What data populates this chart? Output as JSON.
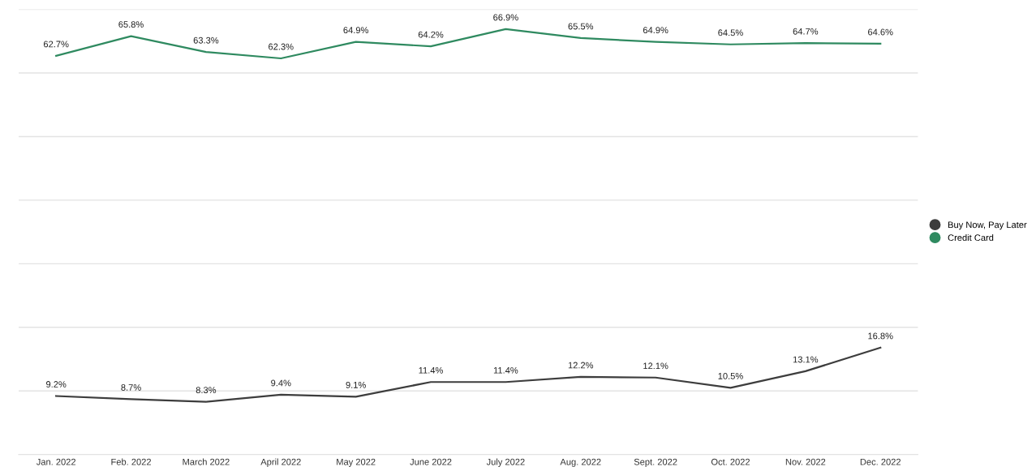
{
  "chart_data": {
    "type": "line",
    "categories": [
      "Jan. 2022",
      "Feb. 2022",
      "March 2022",
      "April 2022",
      "May 2022",
      "June 2022",
      "July 2022",
      "Aug. 2022",
      "Sept. 2022",
      "Oct. 2022",
      "Nov. 2022",
      "Dec. 2022"
    ],
    "series": [
      {
        "name": "Buy Now, Pay Later",
        "color": "#3d3d3d",
        "values": [
          9.2,
          8.7,
          8.3,
          9.4,
          9.1,
          11.4,
          11.4,
          12.2,
          12.1,
          10.5,
          13.1,
          16.8
        ],
        "value_labels": [
          "9.2%",
          "8.7%",
          "8.3%",
          "9.4%",
          "9.1%",
          "11.4%",
          "11.4%",
          "12.2%",
          "12.1%",
          "10.5%",
          "13.1%",
          "16.8%"
        ]
      },
      {
        "name": "Credit Card",
        "color": "#2f8a60",
        "values": [
          62.7,
          65.8,
          63.3,
          62.3,
          64.9,
          64.2,
          66.9,
          65.5,
          64.9,
          64.5,
          64.7,
          64.6
        ],
        "value_labels": [
          "62.7%",
          "65.8%",
          "63.3%",
          "62.3%",
          "64.9%",
          "64.2%",
          "66.9%",
          "65.5%",
          "64.9%",
          "64.5%",
          "64.7%",
          "64.6%"
        ]
      }
    ],
    "ylim": [
      0,
      70
    ],
    "yticks": [
      {
        "value": 0,
        "label": null
      },
      {
        "value": 10,
        "label": null
      },
      {
        "value": 20,
        "label": null
      },
      {
        "value": 30,
        "label": null
      },
      {
        "value": 40,
        "label": null
      },
      {
        "value": 50,
        "label": null
      },
      {
        "value": 60,
        "label": null
      },
      {
        "value": 70,
        "label": null
      }
    ],
    "tick_labels": "x",
    "grid": "y",
    "legend": "right",
    "marker": "none",
    "line_style": "solid"
  }
}
